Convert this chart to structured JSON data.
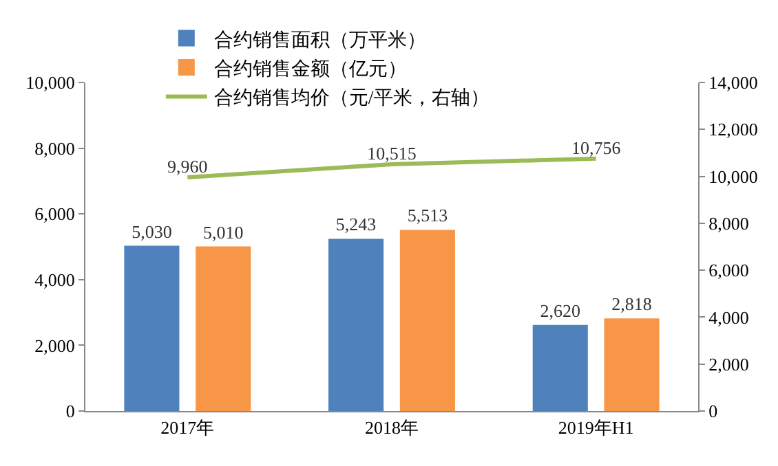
{
  "chart_data": {
    "type": "bar",
    "categories": [
      "2017年",
      "2018年",
      "2019年H1"
    ],
    "series": [
      {
        "name": "合约销售面积（万平米）",
        "color": "#4f81bd",
        "values": [
          5030,
          5243,
          2620
        ],
        "value_labels": [
          "5,030",
          "5,243",
          "2,620"
        ]
      },
      {
        "name": "合约销售金额（亿元）",
        "color": "#f79646",
        "values": [
          5010,
          5513,
          2818
        ],
        "value_labels": [
          "5,010",
          "5,513",
          "2,818"
        ]
      },
      {
        "name": "合约销售均价（元/平米，右轴）",
        "type": "line",
        "axis": "y2",
        "color": "#9bbb59",
        "values": [
          9960,
          10515,
          10756
        ],
        "value_labels": [
          "9,960",
          "10,515",
          "10,756"
        ]
      }
    ],
    "ylim": [
      0,
      10000
    ],
    "yticks": [
      0,
      {
        "value": 2000,
        "label": "2,000"
      },
      {
        "value": 4000,
        "label": "4,000"
      },
      {
        "value": 6000,
        "label": "6,000"
      },
      {
        "value": 8000,
        "label": "8,000"
      },
      {
        "value": 10000,
        "label": "10,000"
      }
    ],
    "y2lim": [
      0,
      14000
    ],
    "y2ticks": [
      0,
      {
        "value": 2000,
        "label": "2,000"
      },
      {
        "value": 4000,
        "label": "4,000"
      },
      {
        "value": 6000,
        "label": "6,000"
      },
      {
        "value": 8000,
        "label": "8,000"
      },
      {
        "value": 10000,
        "label": "10,000"
      },
      {
        "value": 12000,
        "label": "12,000"
      },
      {
        "value": 14000,
        "label": "14,000"
      }
    ],
    "grid": false,
    "legend": "top",
    "marker": "none"
  }
}
